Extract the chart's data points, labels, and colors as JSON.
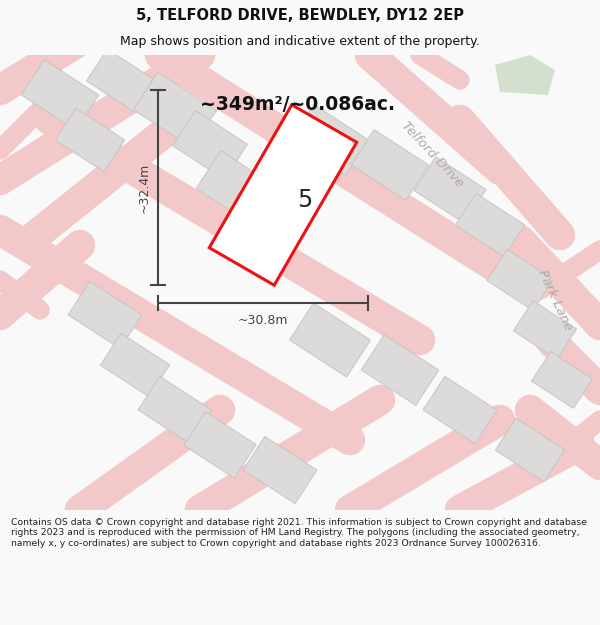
{
  "title": "5, TELFORD DRIVE, BEWDLEY, DY12 2EP",
  "subtitle": "Map shows position and indicative extent of the property.",
  "footer": "Contains OS data © Crown copyright and database right 2021. This information is subject to Crown copyright and database rights 2023 and is reproduced with the permission of HM Land Registry. The polygons (including the associated geometry, namely x, y co-ordinates) are subject to Crown copyright and database rights 2023 Ordnance Survey 100026316.",
  "area_label": "~349m²/~0.086ac.",
  "width_label": "~30.8m",
  "height_label": "~32.4m",
  "plot_number": "5",
  "bg_color": "#f9f9f9",
  "map_bg": "#eeecec",
  "road_color": "#f2c8c8",
  "building_color": "#dddada",
  "building_outline": "#c8c4c4",
  "green_patch": "#c8d8c0",
  "plot_color": "#ee1111",
  "plot_fill": "#ffffff",
  "dim_color": "#444444",
  "road_label_color": "#b0aaaa",
  "title_color": "#111111",
  "footer_color": "#222222"
}
